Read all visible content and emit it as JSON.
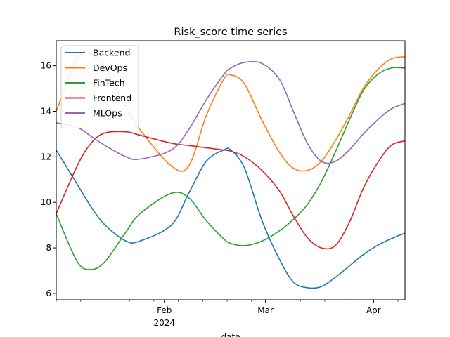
{
  "chart_data": {
    "type": "line",
    "title": "Risk_score time series",
    "xlabel": "date",
    "ylabel": "",
    "x_range": [
      "2024-01-01",
      "2024-04-10"
    ],
    "ylim": [
      5.72,
      17.1
    ],
    "y_ticks": [
      6,
      8,
      10,
      12,
      14,
      16
    ],
    "x_ticks": [
      {
        "date": "2024-02-01",
        "label": "Feb",
        "sublabel": "2024"
      },
      {
        "date": "2024-03-01",
        "label": "Mar",
        "sublabel": ""
      },
      {
        "date": "2024-04-01",
        "label": "Apr",
        "sublabel": ""
      }
    ],
    "grid": false,
    "legend_position": "top-left",
    "x": [
      "2024-01-01",
      "2024-01-07",
      "2024-01-11",
      "2024-01-15",
      "2024-01-21",
      "2024-01-25",
      "2024-02-03",
      "2024-02-08",
      "2024-02-13",
      "2024-02-18",
      "2024-02-20",
      "2024-02-24",
      "2024-02-29",
      "2024-03-05",
      "2024-03-09",
      "2024-03-13",
      "2024-03-17",
      "2024-03-21",
      "2024-03-25",
      "2024-03-29",
      "2024-04-02",
      "2024-04-06",
      "2024-04-10"
    ],
    "series": [
      {
        "name": "Backend",
        "color": "#1f77b4",
        "values": [
          12.3,
          10.8,
          9.8,
          9.0,
          8.3,
          8.3,
          9.0,
          10.4,
          11.8,
          12.3,
          12.3,
          11.5,
          9.2,
          7.5,
          6.5,
          6.25,
          6.3,
          6.7,
          7.2,
          7.7,
          8.1,
          8.4,
          8.65
        ]
      },
      {
        "name": "DevOps",
        "color": "#ff7f0e",
        "values": [
          14.0,
          16.3,
          16.5,
          15.9,
          14.2,
          13.2,
          11.6,
          11.6,
          13.8,
          15.4,
          15.6,
          15.2,
          13.6,
          12.2,
          11.5,
          11.4,
          11.8,
          12.7,
          13.8,
          15.0,
          15.8,
          16.3,
          16.4
        ]
      },
      {
        "name": "FinTech",
        "color": "#2ca02c",
        "values": [
          9.5,
          7.4,
          7.05,
          7.4,
          8.7,
          9.5,
          10.4,
          10.2,
          9.2,
          8.4,
          8.2,
          8.1,
          8.3,
          8.75,
          9.25,
          9.9,
          10.9,
          12.2,
          13.6,
          14.9,
          15.6,
          15.9,
          15.9
        ]
      },
      {
        "name": "Frontend",
        "color": "#d62728",
        "values": [
          9.5,
          11.6,
          12.6,
          13.05,
          13.1,
          12.95,
          12.6,
          12.5,
          12.4,
          12.3,
          12.25,
          12.0,
          11.4,
          10.5,
          9.4,
          8.45,
          8.0,
          8.1,
          9.1,
          10.6,
          11.7,
          12.5,
          12.7
        ]
      },
      {
        "name": "MLOps",
        "color": "#9467bd",
        "values": [
          13.5,
          13.3,
          12.9,
          12.5,
          12.0,
          11.9,
          12.3,
          13.2,
          14.5,
          15.6,
          15.9,
          16.15,
          16.1,
          15.4,
          14.0,
          12.6,
          11.8,
          11.8,
          12.3,
          13.0,
          13.6,
          14.1,
          14.35
        ]
      }
    ]
  }
}
